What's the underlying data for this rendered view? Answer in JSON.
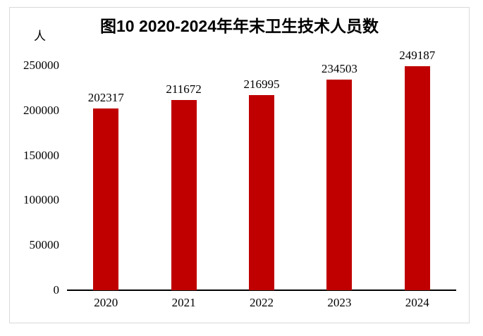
{
  "chart_data": {
    "type": "bar",
    "title": "图10 2020-2024年年末卫生技术人员数",
    "unit_label": "人",
    "xlabel": "",
    "ylabel": "人",
    "categories": [
      "2020",
      "2021",
      "2022",
      "2023",
      "2024"
    ],
    "values": [
      202317,
      211672,
      216995,
      234503,
      249187
    ],
    "yticks": [
      0,
      50000,
      100000,
      150000,
      200000,
      250000
    ],
    "ylim": [
      0,
      250000
    ],
    "grid": "off",
    "legend": "none",
    "value_labels": "above-bars",
    "bar_color": "#c00000",
    "text_color": "#000000",
    "axis_color": "#000000",
    "frame_border_color": "#d9d9d9",
    "background_color": "#ffffff"
  }
}
